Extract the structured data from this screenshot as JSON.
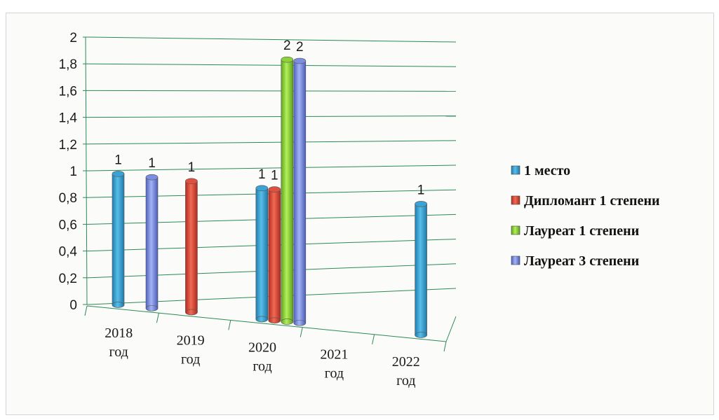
{
  "chart_data": {
    "type": "bar",
    "categories": [
      [
        "2018",
        "год"
      ],
      [
        "2019",
        "год"
      ],
      [
        "2020",
        "год"
      ],
      [
        "2021",
        "год"
      ],
      [
        "2022",
        "год"
      ]
    ],
    "y_ticks": [
      "0",
      "0,2",
      "0,4",
      "0,6",
      "0,8",
      "1",
      "1,2",
      "1,4",
      "1,6",
      "1,8",
      "2"
    ],
    "ylim": [
      0,
      2
    ],
    "grid": true,
    "legend_position": "right",
    "series": [
      {
        "name": "1 место",
        "color": "#3aa3d6",
        "values": [
          1,
          null,
          1,
          null,
          1
        ]
      },
      {
        "name": "Дипломант 1 степени",
        "color": "#e1503f",
        "values": [
          null,
          1,
          1,
          null,
          null
        ]
      },
      {
        "name": "Лауреат 1 степени",
        "color": "#8fd13b",
        "values": [
          null,
          null,
          2,
          null,
          null
        ]
      },
      {
        "name": "Лауреат 3 степени",
        "color": "#7b8ee0",
        "values": [
          1,
          null,
          2,
          null,
          null
        ]
      }
    ],
    "data_labels": true
  }
}
